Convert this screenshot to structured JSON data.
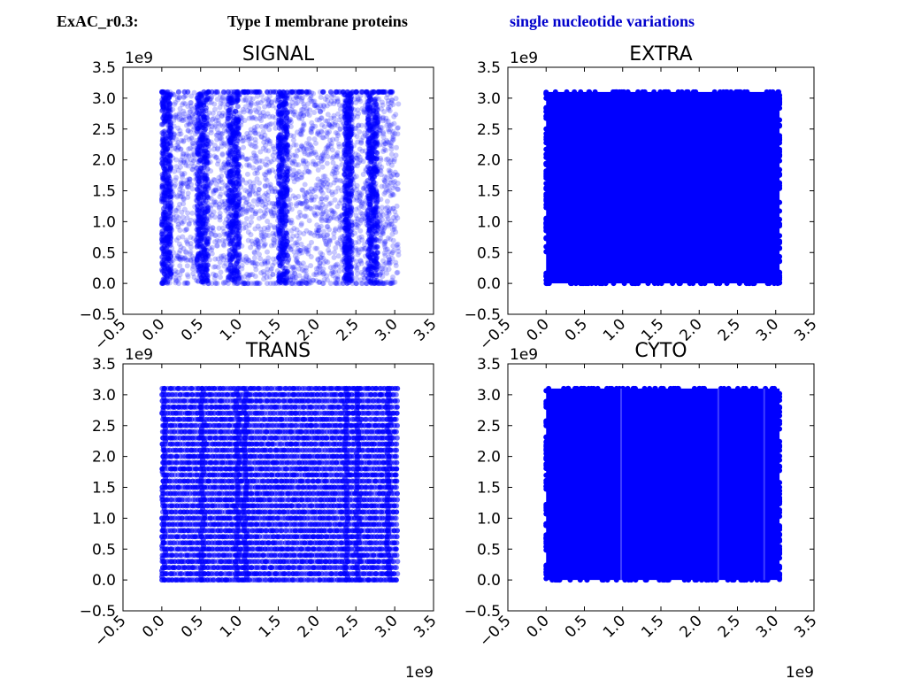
{
  "header": {
    "dataset": "ExAC_r0.3:",
    "protein_type": "Type I membrane proteins",
    "variation_type": "single nucleotide variations",
    "variation_color": "#0000cc"
  },
  "chart_data": [
    {
      "type": "scatter",
      "title": "SIGNAL",
      "xlabel": "",
      "ylabel": "",
      "xlim": [
        -0.5,
        3.5
      ],
      "ylim": [
        -0.5,
        3.5
      ],
      "x_offset_label": "1e9",
      "y_offset_label": "1e9",
      "xticks": [
        "−0.5",
        "0.0",
        "0.5",
        "1.0",
        "1.5",
        "2.0",
        "2.5",
        "3.0",
        "3.5"
      ],
      "yticks": [
        "−0.5",
        "0.0",
        "0.5",
        "1.0",
        "1.5",
        "2.0",
        "2.5",
        "3.0",
        "3.5"
      ],
      "point_color": "#0000ff",
      "density": "moderate",
      "pattern": "vertical bands",
      "point_extent": {
        "x": [
          0.0,
          3.05
        ],
        "y": [
          0.0,
          3.1
        ]
      },
      "dense_bands_x": [
        [
          0.0,
          0.12
        ],
        [
          0.45,
          0.6
        ],
        [
          0.85,
          1.0
        ],
        [
          1.5,
          1.62
        ],
        [
          2.35,
          2.45
        ],
        [
          2.65,
          2.78
        ]
      ]
    },
    {
      "type": "scatter",
      "title": "EXTRA",
      "xlabel": "",
      "ylabel": "",
      "xlim": [
        -0.5,
        3.5
      ],
      "ylim": [
        -0.5,
        3.5
      ],
      "x_offset_label": "1e9",
      "y_offset_label": "1e9",
      "xticks": [
        "−0.5",
        "0.0",
        "0.5",
        "1.0",
        "1.5",
        "2.0",
        "2.5",
        "3.0",
        "3.5"
      ],
      "yticks": [
        "−0.5",
        "0.0",
        "0.5",
        "1.0",
        "1.5",
        "2.0",
        "2.5",
        "3.0",
        "3.5"
      ],
      "point_color": "#0000ff",
      "density": "saturated",
      "pattern": "solid",
      "point_extent": {
        "x": [
          0.0,
          3.05
        ],
        "y": [
          0.0,
          3.1
        ]
      }
    },
    {
      "type": "scatter",
      "title": "TRANS",
      "xlabel": "",
      "ylabel": "",
      "xlim": [
        -0.5,
        3.5
      ],
      "ylim": [
        -0.5,
        3.5
      ],
      "x_offset_label": "1e9",
      "y_offset_label": "1e9",
      "xticks": [
        "−0.5",
        "0.0",
        "0.5",
        "1.0",
        "1.5",
        "2.0",
        "2.5",
        "3.0",
        "3.5"
      ],
      "yticks": [
        "−0.5",
        "0.0",
        "0.5",
        "1.0",
        "1.5",
        "2.0",
        "2.5",
        "3.0",
        "3.5"
      ],
      "point_color": "#0000ff",
      "density": "moderate",
      "pattern": "grid",
      "point_extent": {
        "x": [
          0.0,
          3.05
        ],
        "y": [
          0.0,
          3.1
        ]
      },
      "row_spacing_y": 0.1
    },
    {
      "type": "scatter",
      "title": "CYTO",
      "xlabel": "",
      "ylabel": "",
      "xlim": [
        -0.5,
        3.5
      ],
      "ylim": [
        -0.5,
        3.5
      ],
      "x_offset_label": "1e9",
      "y_offset_label": "1e9",
      "xticks": [
        "−0.5",
        "0.0",
        "0.5",
        "1.0",
        "1.5",
        "2.0",
        "2.5",
        "3.0",
        "3.5"
      ],
      "yticks": [
        "−0.5",
        "0.0",
        "0.5",
        "1.0",
        "1.5",
        "2.0",
        "2.5",
        "3.0",
        "3.5"
      ],
      "point_color": "#0000ff",
      "density": "saturated",
      "pattern": "solid",
      "point_extent": {
        "x": [
          0.0,
          3.05
        ],
        "y": [
          0.0,
          3.1
        ]
      },
      "gap_lines_x": [
        0.98,
        2.25,
        2.85
      ]
    }
  ]
}
